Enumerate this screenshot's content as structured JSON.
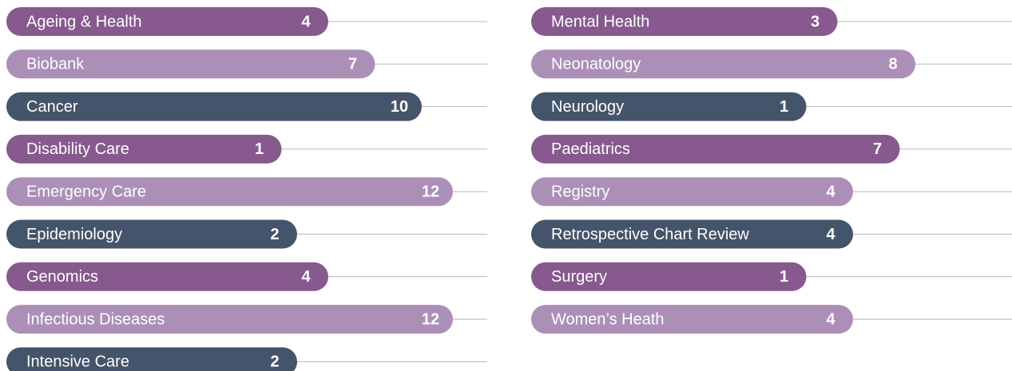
{
  "chart_data": [
    {
      "type": "bar",
      "categories": [
        "Ageing & Health",
        "Biobank",
        "Cancer",
        "Disability Care",
        "Emergency Care",
        "Epidemiology",
        "Genomics",
        "Infectious Diseases",
        "Intensive Care"
      ],
      "values": [
        4,
        7,
        10,
        1,
        12,
        2,
        4,
        12,
        2
      ],
      "colors": [
        "#87598f",
        "#ac8fb7",
        "#44546a"
      ]
    },
    {
      "type": "bar",
      "categories": [
        "Mental Health",
        "Neonatology",
        "Neurology",
        "Paediatrics",
        "Registry",
        "Retrospective Chart Review",
        "Surgery",
        "Women’s Heath"
      ],
      "values": [
        3,
        8,
        1,
        7,
        4,
        4,
        1,
        4
      ],
      "colors": [
        "#87598f",
        "#ac8fb7",
        "#44546a"
      ]
    }
  ]
}
